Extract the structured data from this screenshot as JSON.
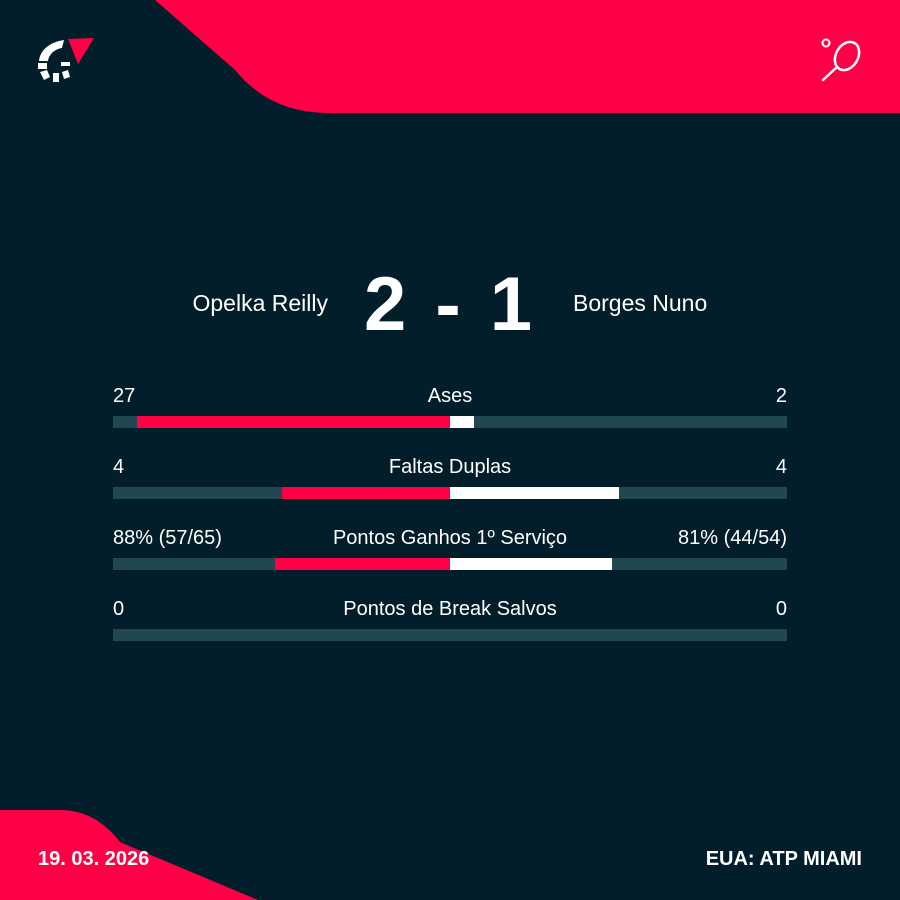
{
  "colors": {
    "background": "#021e2a",
    "accent": "#ff0046",
    "track": "#214851",
    "away_bar": "#ffffff"
  },
  "header": {
    "logo_icon": "flashscore-logo-icon",
    "sport_icon": "tennis-racket-icon"
  },
  "match": {
    "home": "Opelka Reilly",
    "away": "Borges Nuno",
    "score": "2 - 1"
  },
  "stats": [
    {
      "label": "Ases",
      "home": "27",
      "away": "2",
      "home_share": 0.93,
      "away_share": 0.07
    },
    {
      "label": "Faltas Duplas",
      "home": "4",
      "away": "4",
      "home_share": 0.5,
      "away_share": 0.5
    },
    {
      "label": "Pontos Ganhos 1º Serviço",
      "home": "88% (57/65)",
      "away": "81% (44/54)",
      "home_share": 0.52,
      "away_share": 0.48
    },
    {
      "label": "Pontos de Break Salvos",
      "home": "0",
      "away": "0",
      "home_share": 0,
      "away_share": 0
    }
  ],
  "footer": {
    "date": "19. 03. 2026",
    "event": "EUA: ATP MIAMI"
  }
}
